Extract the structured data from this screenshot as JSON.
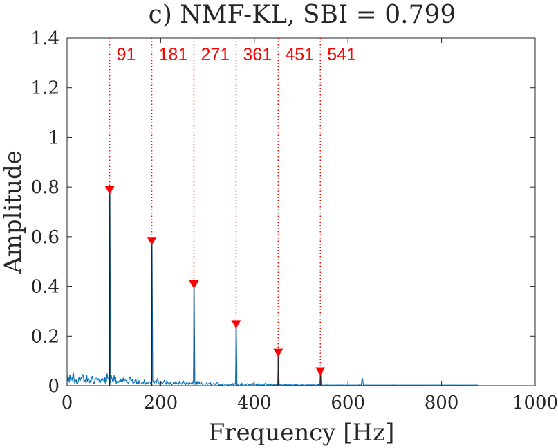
{
  "chart_data": {
    "type": "line",
    "title": "c) NMF-KL, SBI = 0.799",
    "xlabel": "Frequency [Hz]",
    "ylabel": "Amplitude",
    "xlim": [
      0,
      1000
    ],
    "ylim": [
      0,
      1.4
    ],
    "x_ticks": [
      "0",
      "200",
      "400",
      "600",
      "800",
      "1000"
    ],
    "y_ticks": [
      "0",
      "0.2",
      "0.4",
      "0.6",
      "0.8",
      "1",
      "1.2",
      "1.4"
    ],
    "grid": false,
    "series": [
      {
        "name": "spectrum",
        "color": "#0072BD",
        "max_frequency": 880,
        "noise_floor": 0.03
      }
    ],
    "harmonics": {
      "color": "#FF0000",
      "frequencies": [
        91,
        181,
        271,
        361,
        451,
        541
      ],
      "labels": [
        "91",
        "181",
        "271",
        "361",
        "451",
        "541"
      ],
      "amplitudes": [
        0.79,
        0.585,
        0.41,
        0.25,
        0.135,
        0.06
      ]
    }
  }
}
